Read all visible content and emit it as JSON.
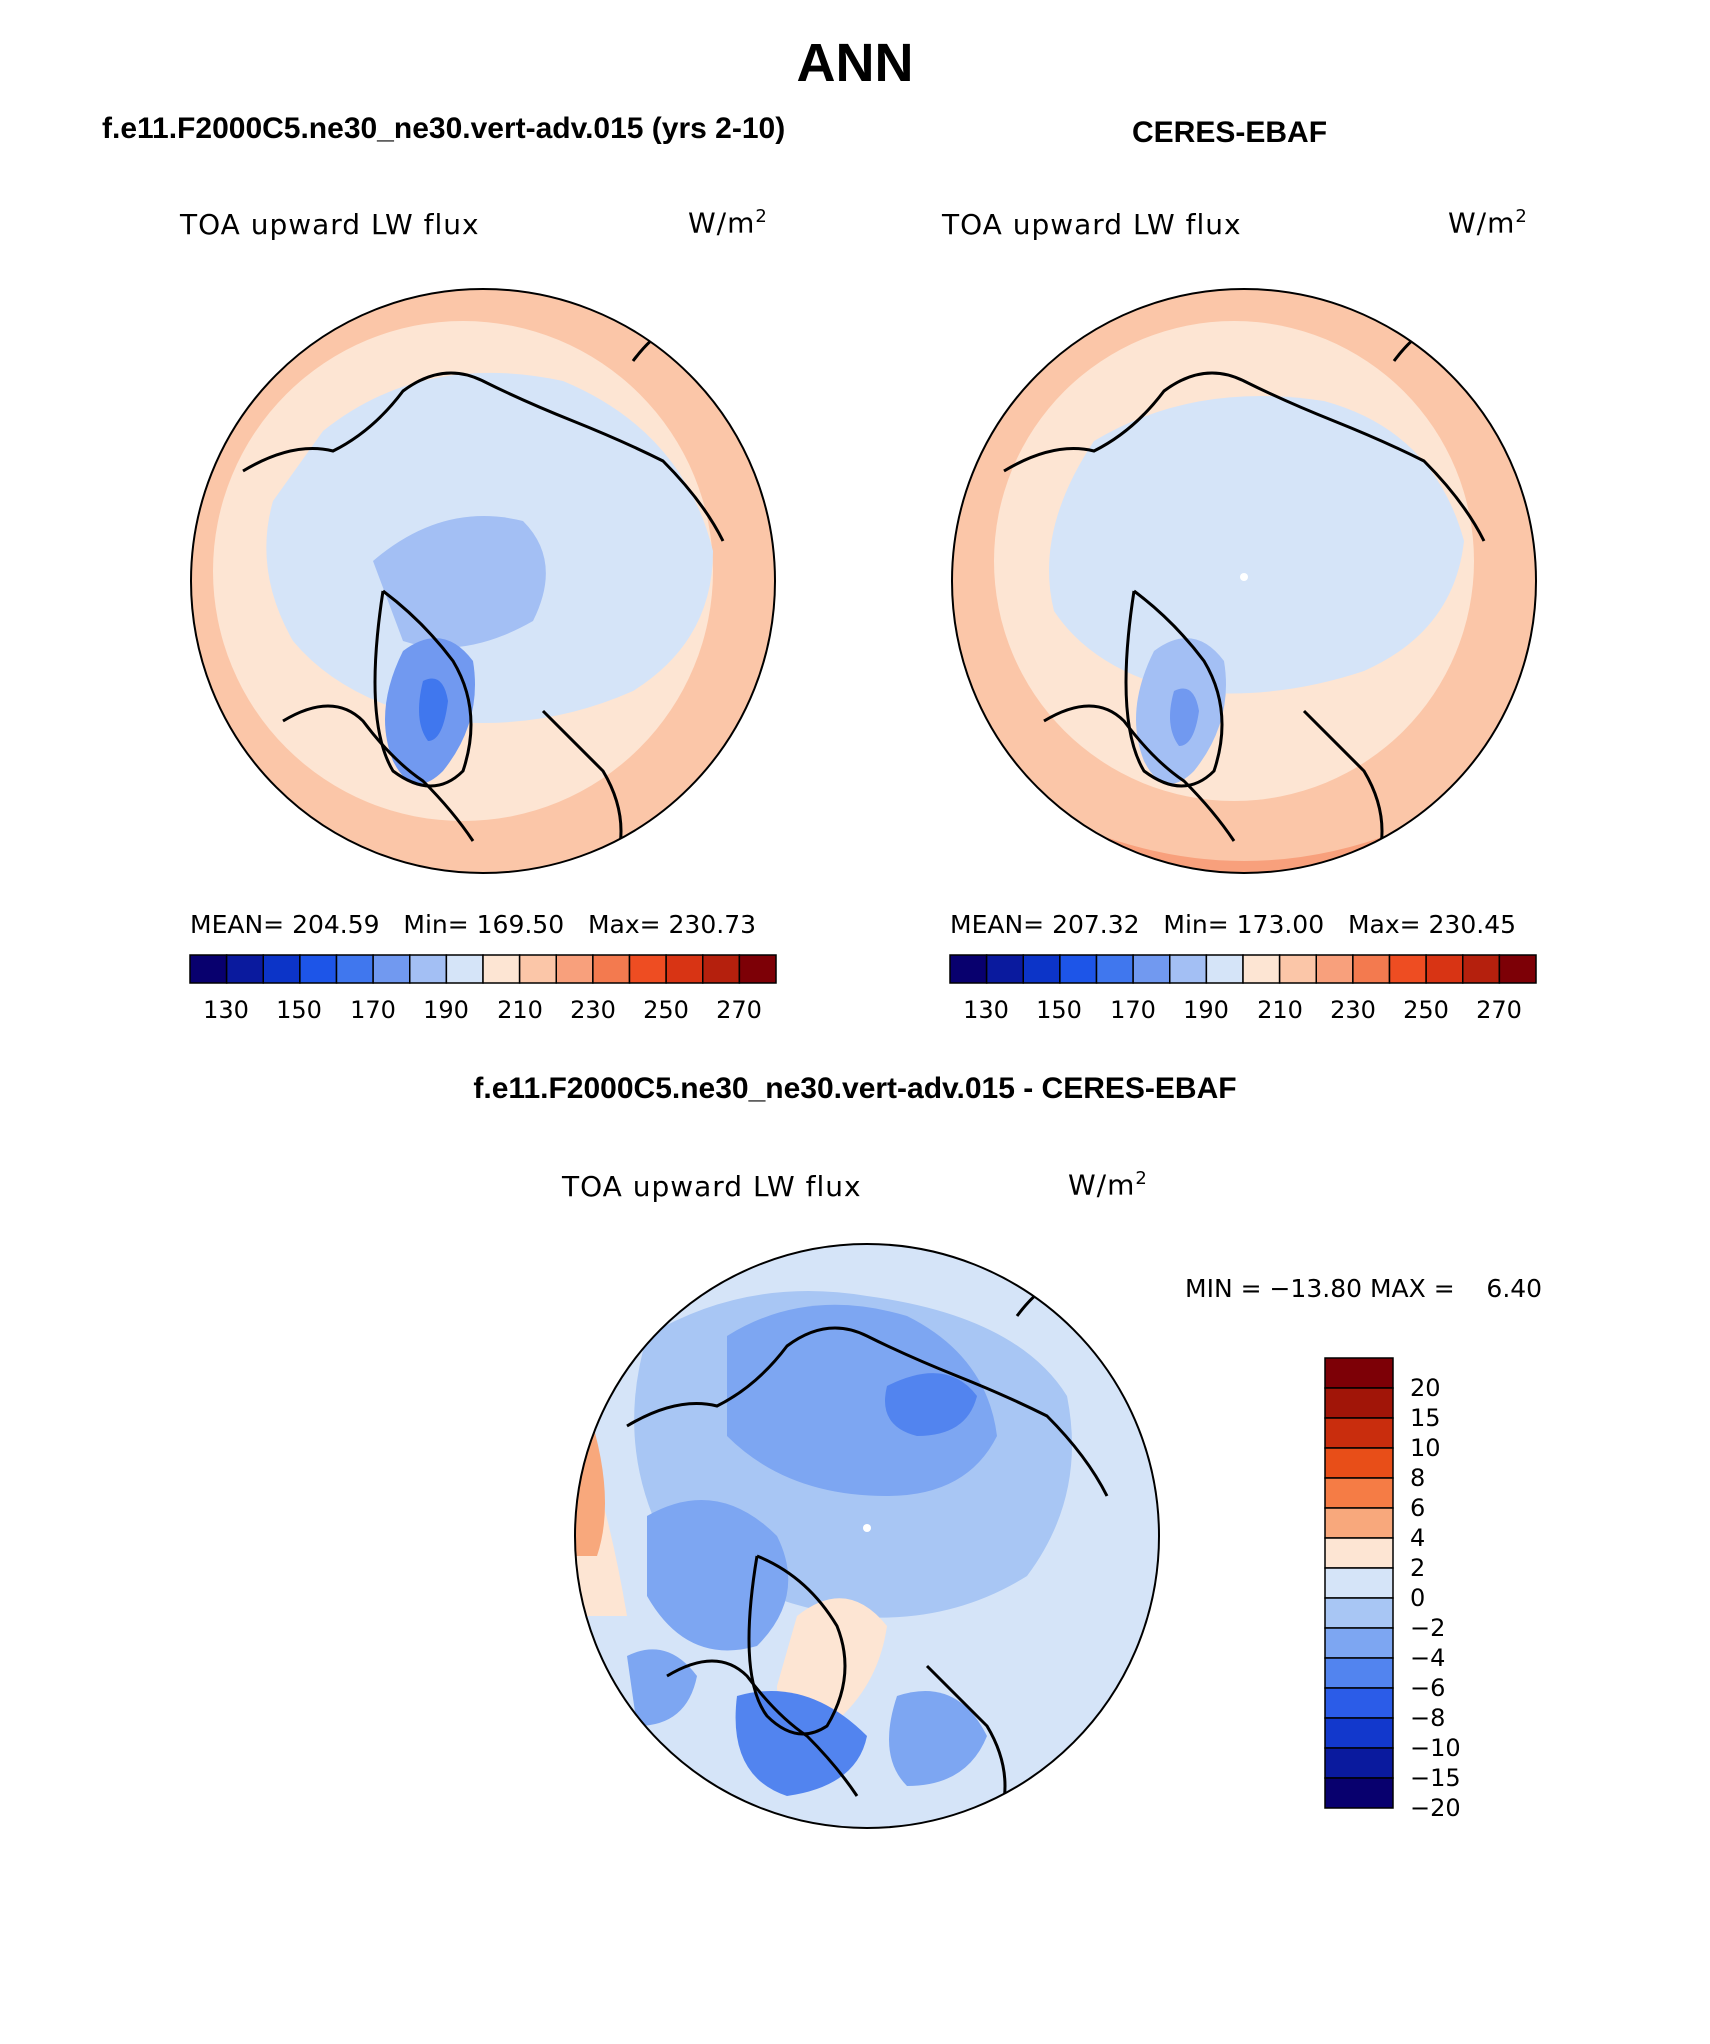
{
  "title": "ANN",
  "panels": [
    {
      "header": "f.e11.F2000C5.ne30_ne30.vert-adv.015 (yrs 2-10)",
      "variable": "TOA upward LW flux",
      "units_base": "W/m",
      "units_exp": "2",
      "stats": "MEAN= 204.59   Min= 169.50   Max= 230.73",
      "colorbar_ticks": [
        "130",
        "150",
        "170",
        "190",
        "210",
        "230",
        "250",
        "270"
      ]
    },
    {
      "header": "CERES-EBAF",
      "variable": "TOA upward LW flux",
      "units_base": "W/m",
      "units_exp": "2",
      "stats": "MEAN= 207.32   Min= 173.00   Max= 230.45",
      "colorbar_ticks": [
        "130",
        "150",
        "170",
        "190",
        "210",
        "230",
        "250",
        "270"
      ]
    }
  ],
  "diff": {
    "header": "f.e11.F2000C5.ne30_ne30.vert-adv.015 - CERES-EBAF",
    "variable": "TOA upward LW flux",
    "units_base": "W/m",
    "units_exp": "2",
    "minmax": "MIN = −13.80 MAX =    6.40",
    "colorbar_ticks": [
      "20",
      "15",
      "10",
      "8",
      "6",
      "4",
      "2",
      "0",
      "−2",
      "−4",
      "−6",
      "−8",
      "−10",
      "−15",
      "−20"
    ]
  },
  "colors": {
    "abs_scale": [
      "#08006e",
      "#0a1a9e",
      "#0c34c8",
      "#1d55e8",
      "#4077ee",
      "#7199f0",
      "#a3bff4",
      "#d5e4f8",
      "#fde5d3",
      "#fbc6a8",
      "#f8a07c",
      "#f37a4f",
      "#ee4d22",
      "#d83414",
      "#b5200d",
      "#7d0006"
    ],
    "diff_scale_top_to_bottom": [
      "#7d0006",
      "#a11508",
      "#c92d0d",
      "#e84e18",
      "#f57c45",
      "#f8a87c",
      "#fde5d3",
      "#d5e4f8",
      "#a8c6f4",
      "#7da6f2",
      "#5284ef",
      "#2b5ce8",
      "#1238cc",
      "#0a1a9e",
      "#08006e"
    ]
  }
}
